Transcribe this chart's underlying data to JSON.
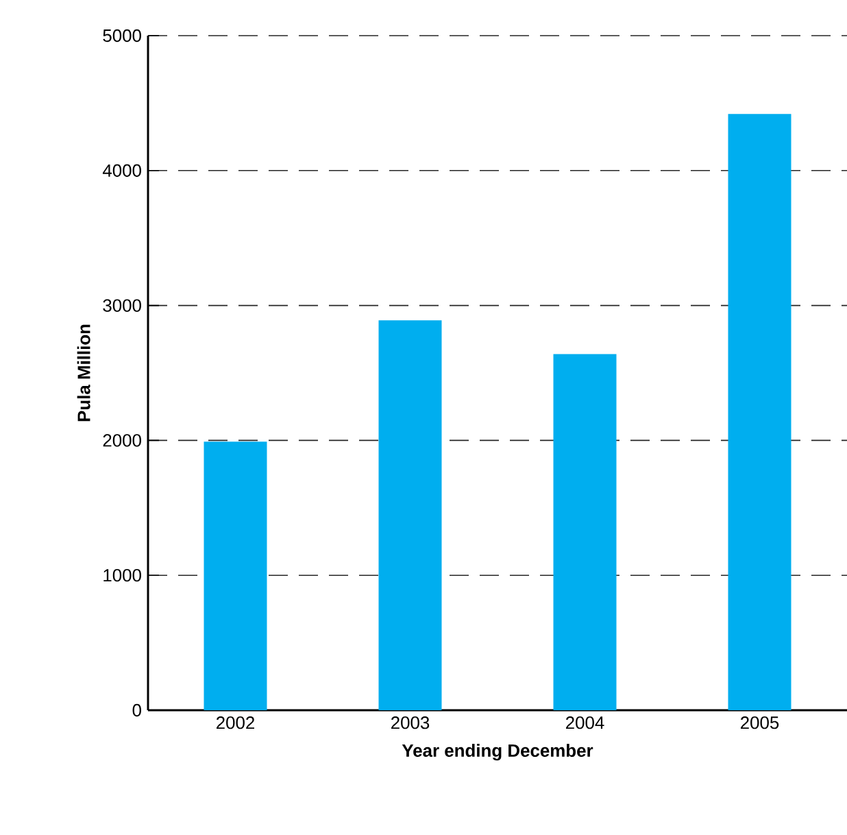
{
  "chart_data": {
    "type": "bar",
    "xlabel": "Year ending December",
    "ylabel": "Pula Million",
    "categories": [
      "2002",
      "2003",
      "2004",
      "2005"
    ],
    "values": [
      1990,
      2890,
      2640,
      4420
    ],
    "color": "#00aeef",
    "ylim": [
      0,
      5000
    ],
    "yticks": [
      0,
      1000,
      2000,
      3000,
      4000,
      5000
    ],
    "grid": "y"
  }
}
